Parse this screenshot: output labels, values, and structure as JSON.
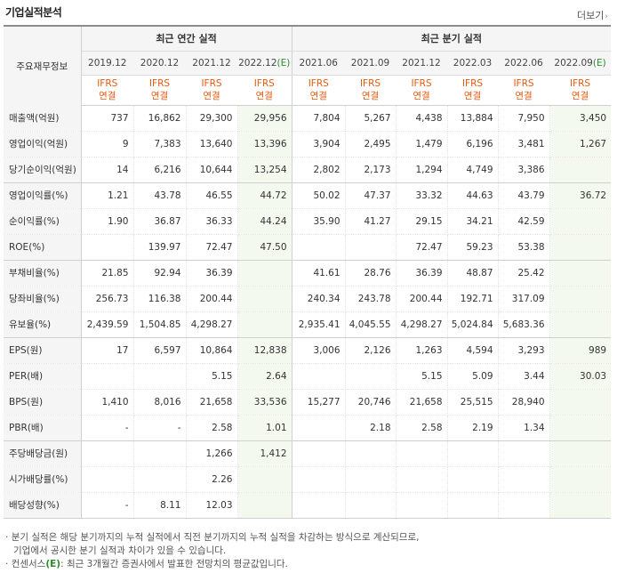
{
  "header": {
    "title": "기업실적분석",
    "more_label": "더보기"
  },
  "table": {
    "label_header": "주요재무정보",
    "group_annual": "최근 연간 실적",
    "group_quarter": "최근 분기 실적",
    "periods": [
      "2019.12",
      "2020.12",
      "2021.12",
      "2022.12",
      "2021.06",
      "2021.09",
      "2021.12",
      "2022.03",
      "2022.06",
      "2022.09"
    ],
    "estimate_mark": "(E)",
    "ifrs_line1": "IFRS",
    "ifrs_line2": "연결",
    "rows": [
      {
        "label": "매출액(억원)",
        "values": [
          "737",
          "16,862",
          "29,300",
          "29,956",
          "7,804",
          "5,267",
          "4,438",
          "13,884",
          "7,950",
          "3,450"
        ]
      },
      {
        "label": "영업이익(억원)",
        "values": [
          "9",
          "7,383",
          "13,640",
          "13,396",
          "3,904",
          "2,495",
          "1,479",
          "6,196",
          "3,481",
          "1,267"
        ]
      },
      {
        "label": "당기순이익(억원)",
        "values": [
          "14",
          "6,216",
          "10,644",
          "13,254",
          "2,802",
          "2,173",
          "1,294",
          "4,749",
          "3,386",
          ""
        ]
      },
      {
        "label": "영업이익률(%)",
        "values": [
          "1.21",
          "43.78",
          "46.55",
          "44.72",
          "50.02",
          "47.37",
          "33.32",
          "44.63",
          "43.79",
          "36.72"
        ]
      },
      {
        "label": "순이익률(%)",
        "values": [
          "1.90",
          "36.87",
          "36.33",
          "44.24",
          "35.90",
          "41.27",
          "29.15",
          "34.21",
          "42.59",
          ""
        ]
      },
      {
        "label": "ROE(%)",
        "values": [
          "",
          "139.97",
          "72.47",
          "47.50",
          "",
          "",
          "72.47",
          "59.23",
          "53.38",
          ""
        ]
      },
      {
        "label": "부채비율(%)",
        "values": [
          "21.85",
          "92.94",
          "36.39",
          "",
          "41.61",
          "28.76",
          "36.39",
          "48.87",
          "25.42",
          ""
        ]
      },
      {
        "label": "당좌비율(%)",
        "values": [
          "256.73",
          "116.38",
          "200.44",
          "",
          "240.34",
          "243.78",
          "200.44",
          "192.71",
          "317.09",
          ""
        ]
      },
      {
        "label": "유보율(%)",
        "values": [
          "2,439.59",
          "1,504.85",
          "4,298.27",
          "",
          "2,935.41",
          "4,045.55",
          "4,298.27",
          "5,024.84",
          "5,683.36",
          ""
        ]
      },
      {
        "label": "EPS(원)",
        "values": [
          "17",
          "6,597",
          "10,864",
          "12,838",
          "3,006",
          "2,126",
          "1,263",
          "4,594",
          "3,293",
          "989"
        ]
      },
      {
        "label": "PER(배)",
        "values": [
          "",
          "",
          "5.15",
          "2.64",
          "",
          "",
          "5.15",
          "5.09",
          "3.44",
          "30.03"
        ]
      },
      {
        "label": "BPS(원)",
        "values": [
          "1,410",
          "8,016",
          "21,658",
          "33,536",
          "15,277",
          "20,746",
          "21,658",
          "25,515",
          "28,940",
          ""
        ]
      },
      {
        "label": "PBR(배)",
        "values": [
          "-",
          "-",
          "2.58",
          "1.01",
          "",
          "2.18",
          "2.58",
          "2.19",
          "1.34",
          ""
        ]
      },
      {
        "label": "주당배당금(원)",
        "values": [
          "",
          "",
          "1,266",
          "1,412",
          "",
          "",
          "",
          "",
          "",
          ""
        ]
      },
      {
        "label": "시가배당률(%)",
        "values": [
          "",
          "",
          "2.26",
          "",
          "",
          "",
          "",
          "",
          "",
          ""
        ]
      },
      {
        "label": "배당성향(%)",
        "values": [
          "-",
          "8.11",
          "12.03",
          "",
          "",
          "",
          "",
          "",
          "",
          ""
        ]
      }
    ]
  },
  "notes": {
    "line1": "분기 실적은 해당 분기까지의 누적 실적에서 직전 분기까지의 누적 실적을 차감하는 방식으로 계산되므로,",
    "line2": "기업에서 공시한 분기 실적과 차이가 있을 수 있습니다.",
    "line3_prefix": "컨센서스",
    "line3_mark": "(E)",
    "line3_rest": ": 최근 3개월간 증권사에서 발표한 전망치의 평균값입니다."
  },
  "colors": {
    "ifrs": "#e8590c",
    "estimate_mark": "#2e8b2e",
    "estimate_bg": "#f3f9ef",
    "label_bg": "#f5f5f5"
  }
}
